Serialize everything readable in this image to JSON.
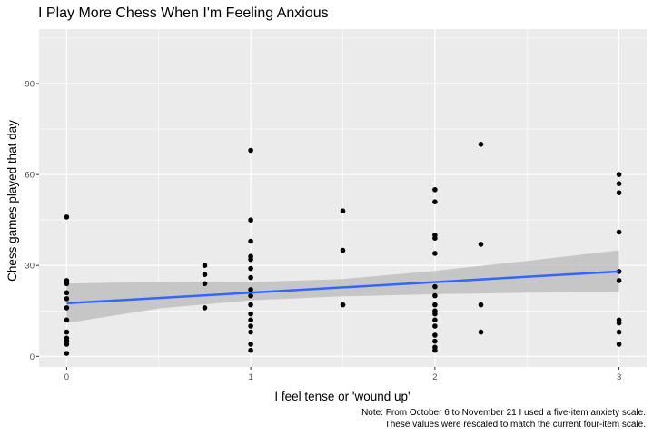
{
  "chart_data": {
    "type": "scatter",
    "title": "I Play More Chess When I'm Feeling Anxious",
    "xlabel": "I feel tense or 'wound up'",
    "ylabel": "Chess games played that day",
    "caption_lines": [
      "Note: From October 6 to November 21 I used a five-item anxiety scale.",
      "These values were rescaled to match the current four-item scale."
    ],
    "xlim": [
      -0.15,
      3.15
    ],
    "ylim": [
      -3.5,
      108
    ],
    "x_ticks": [
      0,
      1,
      2,
      3
    ],
    "x_tick_labels": [
      "0",
      "1",
      "2",
      "3"
    ],
    "y_ticks": [
      0,
      30,
      60,
      90
    ],
    "y_tick_labels": [
      "0",
      "30",
      "60",
      "90"
    ],
    "grid": true,
    "points": [
      [
        0,
        46
      ],
      [
        0,
        25
      ],
      [
        0,
        24
      ],
      [
        0,
        21
      ],
      [
        0,
        19
      ],
      [
        0,
        16
      ],
      [
        0,
        12
      ],
      [
        0,
        8
      ],
      [
        0,
        6
      ],
      [
        0,
        5
      ],
      [
        0,
        4
      ],
      [
        0,
        1
      ],
      [
        0.75,
        30
      ],
      [
        0.75,
        27
      ],
      [
        0.75,
        24
      ],
      [
        0.75,
        16
      ],
      [
        1,
        68
      ],
      [
        1,
        45
      ],
      [
        1,
        38
      ],
      [
        1,
        33
      ],
      [
        1,
        32
      ],
      [
        1,
        29
      ],
      [
        1,
        26
      ],
      [
        1,
        22
      ],
      [
        1,
        20
      ],
      [
        1,
        17
      ],
      [
        1,
        14
      ],
      [
        1,
        12
      ],
      [
        1,
        10
      ],
      [
        1,
        8
      ],
      [
        1,
        4
      ],
      [
        1,
        2
      ],
      [
        1.5,
        48
      ],
      [
        1.5,
        35
      ],
      [
        1.5,
        17
      ],
      [
        2,
        55
      ],
      [
        2,
        51
      ],
      [
        2,
        40
      ],
      [
        2,
        39
      ],
      [
        2,
        34
      ],
      [
        2,
        23
      ],
      [
        2,
        20
      ],
      [
        2,
        17
      ],
      [
        2,
        15
      ],
      [
        2,
        14
      ],
      [
        2,
        12
      ],
      [
        2,
        10
      ],
      [
        2,
        7
      ],
      [
        2,
        5
      ],
      [
        2,
        3
      ],
      [
        2,
        2
      ],
      [
        2.25,
        70
      ],
      [
        2.25,
        37
      ],
      [
        2.25,
        17
      ],
      [
        2.25,
        8
      ],
      [
        3,
        60
      ],
      [
        3,
        57
      ],
      [
        3,
        54
      ],
      [
        3,
        41
      ],
      [
        3,
        28
      ],
      [
        3,
        25
      ],
      [
        3,
        12
      ],
      [
        3,
        11
      ],
      [
        3,
        8
      ],
      [
        3,
        4
      ]
    ],
    "trend_line": {
      "method": "lm",
      "x": [
        0,
        3
      ],
      "y": [
        17.5,
        28
      ],
      "color": "#3366FF"
    },
    "confidence_band": {
      "x": [
        0,
        0.5,
        1,
        1.5,
        2,
        2.5,
        3
      ],
      "lower": [
        11,
        15.8,
        18.5,
        19.8,
        20.5,
        21,
        21.2
      ],
      "upper": [
        24,
        24.6,
        24.5,
        25.5,
        28.2,
        31.5,
        35
      ],
      "fill": "#bfbfbf"
    },
    "colors": {
      "panel": "#EBEBEB",
      "grid_major": "#FFFFFF",
      "points": "#000000"
    }
  }
}
